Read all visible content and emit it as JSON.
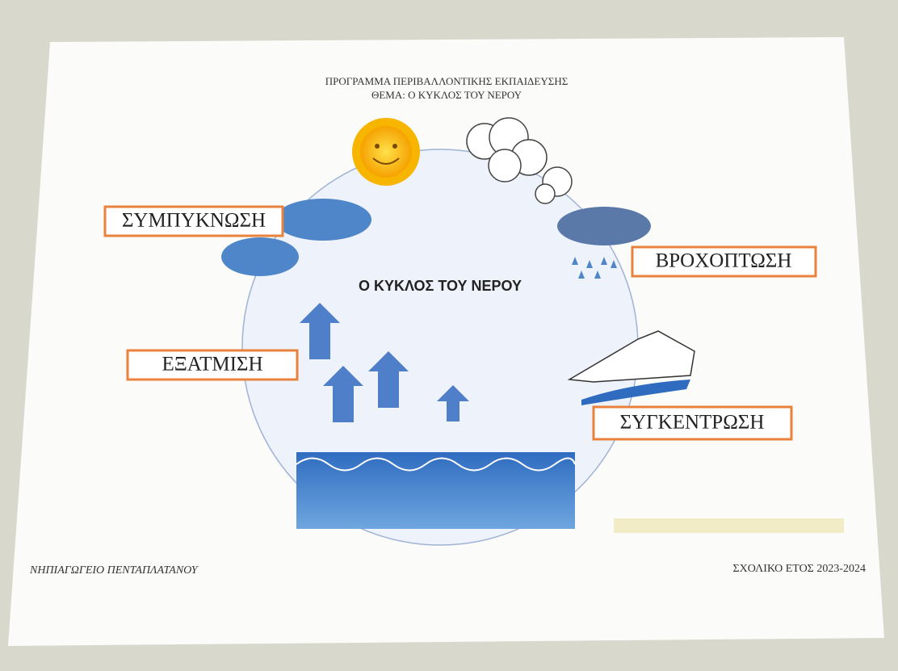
{
  "header": {
    "lines": [
      "ΠΡΟΓΡΑΜΜΑ ΠΕΡΙΒΑΛΛΟΝΤΙΚΗΣ ΕΚΠΑΙΔΕΥΣΗΣ",
      "ΘΕΜΑ:  Ο ΚΥΚΛΟΣ ΤΟΥ ΝΕΡΟΥ"
    ]
  },
  "center_title": "Ο ΚΥΚΛΟΣ ΤΟΥ ΝΕΡΟΥ",
  "labels": [
    "ΣΥΜΠΥΚΝΩΣΗ",
    "ΒΡΟΧΟΠΤΩΣΗ",
    "ΕΞΑΤΜΙΣΗ",
    "ΣΥΓΚΕΝΤΡΩΣΗ"
  ],
  "footer": {
    "left": "ΝΗΠΙΑΓΩΓΕΙΟ ΠΕΝΤΑΠΛΑΤΑΝΟΥ",
    "right": "ΣΧΟΛΙΚΟ ΕΤΟΣ 2023-2024"
  }
}
